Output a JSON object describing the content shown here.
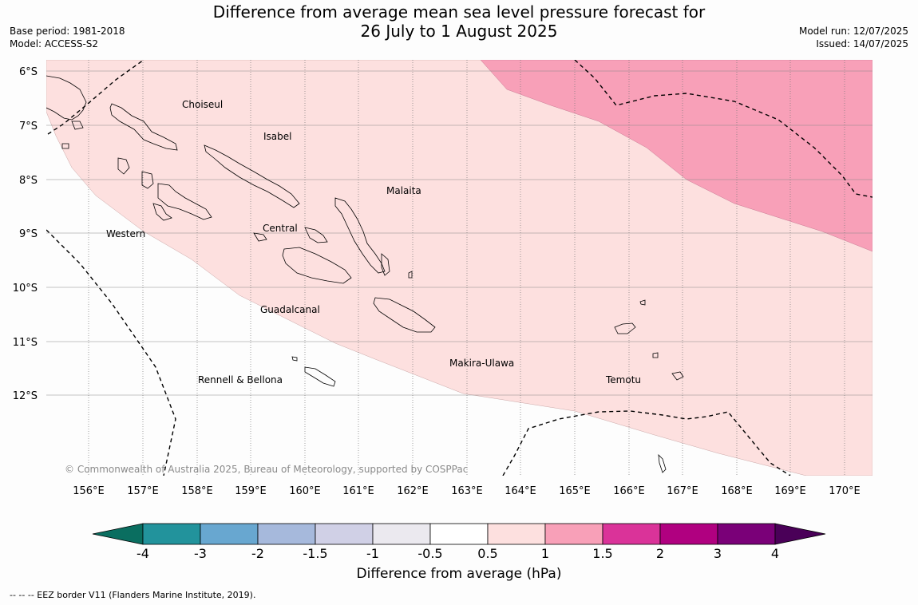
{
  "header": {
    "title_line1": "Difference from average mean sea level pressure forecast for",
    "title_line2": "26 July to 1 August 2025",
    "base_period": "Base period: 1981-2018",
    "model": "Model: ACCESS-S2",
    "model_run": "Model run: 12/07/2025",
    "issued": "Issued: 14/07/2025"
  },
  "map": {
    "lat_labels": [
      "6°S",
      "7°S",
      "8°S",
      "9°S",
      "10°S",
      "11°S",
      "12°S"
    ],
    "lon_labels": [
      "156°E",
      "157°E",
      "158°E",
      "159°E",
      "160°E",
      "161°E",
      "162°E",
      "163°E",
      "164°E",
      "165°E",
      "166°E",
      "167°E",
      "168°E",
      "169°E",
      "170°E"
    ],
    "places": [
      "Choiseul",
      "Isabel",
      "Malaita",
      "Western",
      "Central",
      "Guadalcanal",
      "Makira-Ulawa",
      "Rennell & Bellona",
      "Temotu"
    ],
    "copyright": "© Commonwealth of Australia 2025, Bureau of Meteorology, supported by COSPPac",
    "fill_colors": {
      "band_0_5_1": "#fde0df",
      "band_1_1_5": "#f8a0b8",
      "land_outline": "#000000"
    }
  },
  "colorbar": {
    "ticks": [
      "-4",
      "-3",
      "-2",
      "-1.5",
      "-1",
      "-0.5",
      "0.5",
      "1",
      "1.5",
      "2",
      "3",
      "4"
    ],
    "colors": [
      "#0a6e60",
      "#22939c",
      "#68a7d0",
      "#a6b9dc",
      "#d0d0e6",
      "#ebe9ef",
      "#ffffff",
      "#fde0df",
      "#f8a0b8",
      "#da3399",
      "#b00080",
      "#7a0078",
      "#4a0058"
    ],
    "label": "Difference from average (hPa)"
  },
  "footnote": "--  --  -- EEZ border V11 (Flanders Marine Institute, 2019)."
}
